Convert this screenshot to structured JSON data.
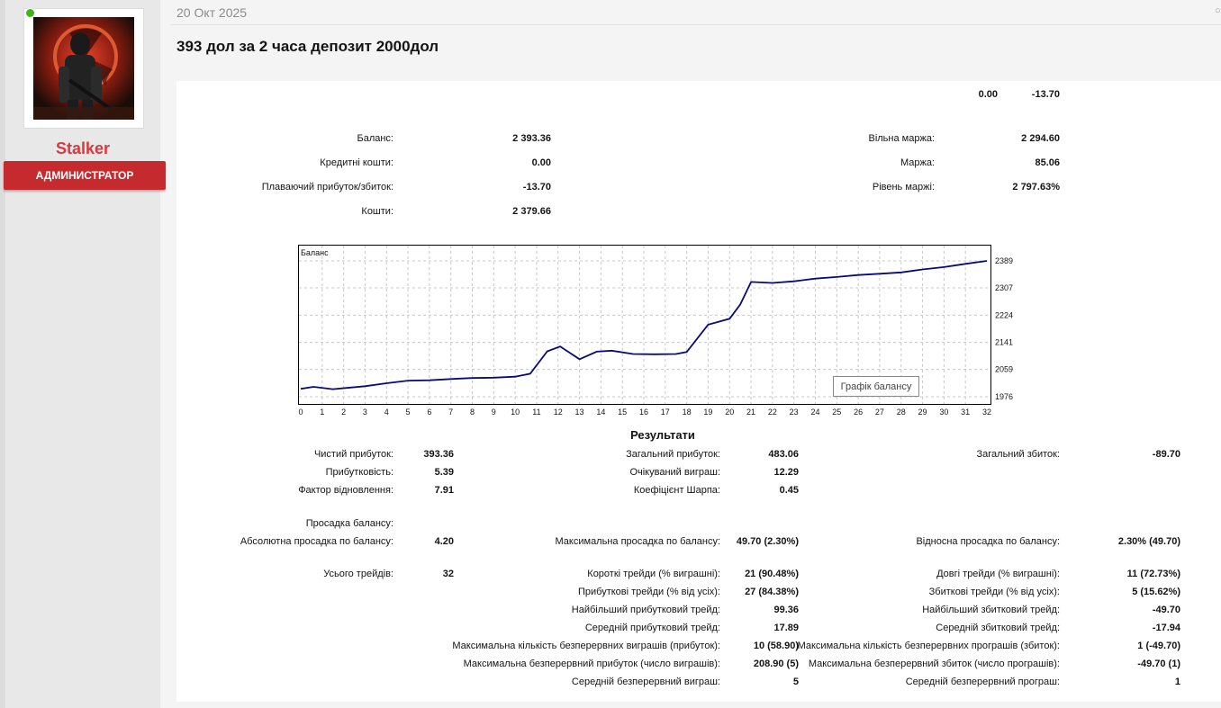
{
  "post": {
    "date": "20 Окт 2025",
    "title": "393 дол за 2 часа депозит 2000дол"
  },
  "author": {
    "name": "Stalker",
    "role": "АДМИНИСТРАТОР"
  },
  "ui": {
    "more_icon": "ellipsis-icon"
  },
  "colors": {
    "accent": "#c52b2e",
    "name": "#d8393c",
    "online": "#3fb618",
    "line": "#0a0a7a"
  },
  "summary": {
    "top_left_value": "0.00",
    "top_right_value": "-13.70",
    "balance_label": "Баланс:",
    "balance_value": "2 393.36",
    "credit_label": "Кредитні кошти:",
    "credit_value": "0.00",
    "floating_label": "Плаваючий прибуток/збиток:",
    "floating_value": "-13.70",
    "equity_label": "Кошти:",
    "equity_value": "2 379.66",
    "free_margin_label": "Вільна маржа:",
    "free_margin_value": "2 294.60",
    "margin_label": "Маржа:",
    "margin_value": "85.06",
    "margin_level_label": "Рівень маржі:",
    "margin_level_value": "2 797.63%"
  },
  "chart_data": {
    "type": "line",
    "title": "Баланс",
    "legend": "Графік балансу",
    "x_ticks": [
      "0",
      "1",
      "2",
      "3",
      "4",
      "5",
      "6",
      "7",
      "8",
      "9",
      "10",
      "11",
      "12",
      "13",
      "14",
      "15",
      "16",
      "17",
      "18",
      "19",
      "20",
      "21",
      "22",
      "23",
      "24",
      "25",
      "26",
      "27",
      "28",
      "29",
      "30",
      "31",
      "32"
    ],
    "y_ticks": [
      "2389",
      "2307",
      "2224",
      "2141",
      "2059",
      "1976"
    ],
    "ylim": [
      1976,
      2389
    ],
    "xlim": [
      0,
      32
    ],
    "grid": true,
    "x": [
      0,
      0.6,
      1.5,
      3,
      4,
      5,
      6,
      7,
      8,
      9,
      10,
      10.7,
      11.5,
      12.1,
      13,
      13.8,
      14.5,
      15.5,
      16.5,
      17.5,
      18,
      19,
      20,
      20.5,
      21,
      22,
      23,
      24,
      25,
      26,
      27,
      28,
      29,
      30,
      31,
      32
    ],
    "y": [
      2000,
      2006,
      1999,
      2008,
      2017,
      2025,
      2026,
      2030,
      2033,
      2034,
      2037,
      2046,
      2114,
      2129,
      2090,
      2113,
      2116,
      2106,
      2105,
      2106,
      2112,
      2195,
      2213,
      2257,
      2325,
      2322,
      2327,
      2335,
      2340,
      2346,
      2350,
      2354,
      2363,
      2370,
      2380,
      2389
    ]
  },
  "results": {
    "title": "Результати",
    "rows": [
      {
        "c1l": "Чистий прибуток:",
        "c1v": "393.36",
        "c2l": "Загальний прибуток:",
        "c2v": "483.06",
        "c3l": "Загальний збиток:",
        "c3v": "-89.70"
      },
      {
        "c1l": "Прибутковість:",
        "c1v": "5.39",
        "c2l": "Очікуваний виграш:",
        "c2v": "12.29",
        "c3l": "",
        "c3v": ""
      },
      {
        "c1l": "Фактор відновлення:",
        "c1v": "7.91",
        "c2l": "Коефіцієнт Шарпа:",
        "c2v": "0.45",
        "c3l": "",
        "c3v": ""
      },
      {
        "c1l": "Просадка балансу:",
        "c1v": "",
        "c2l": "",
        "c2v": "",
        "c3l": "",
        "c3v": ""
      },
      {
        "c1l": "Абсолютна просадка по балансу:",
        "c1v": "4.20",
        "c2l": "Максимальна просадка по балансу:",
        "c2v": "49.70 (2.30%)",
        "c3l": "Відносна просадка по балансу:",
        "c3v": "2.30% (49.70)"
      },
      {
        "c1l": "Усього трейдів:",
        "c1v": "32",
        "c2l": "Короткі трейди (% виграшні):",
        "c2v": "21 (90.48%)",
        "c3l": "Довгі трейди (% виграшні):",
        "c3v": "11 (72.73%)"
      },
      {
        "c1l": "",
        "c1v": "",
        "c2l": "Прибуткові трейди (% від усіх):",
        "c2v": "27 (84.38%)",
        "c3l": "Збиткові трейди (% від усіх):",
        "c3v": "5 (15.62%)"
      },
      {
        "c1l": "",
        "c1v": "",
        "c2l": "Найбільший прибутковий трейд:",
        "c2v": "99.36",
        "c3l": "Найбільший збитковий трейд:",
        "c3v": "-49.70"
      },
      {
        "c1l": "",
        "c1v": "",
        "c2l": "Середній прибутковий трейд:",
        "c2v": "17.89",
        "c3l": "Середній збитковий трейд:",
        "c3v": "-17.94"
      },
      {
        "c1l": "",
        "c1v": "",
        "c2l": "Максимальна кількість безперервних виграшів (прибуток):",
        "c2v": "10 (58.90)",
        "c3l": "Максимальна кількість безперервних програшів (збиток):",
        "c3v": "1 (-49.70)"
      },
      {
        "c1l": "",
        "c1v": "",
        "c2l": "Максимальна безперервний прибуток (число виграшів):",
        "c2v": "208.90 (5)",
        "c3l": "Максимальна безперервний збиток (число програшів):",
        "c3v": "-49.70 (1)"
      },
      {
        "c1l": "",
        "c1v": "",
        "c2l": "Середній безперервний виграш:",
        "c2v": "5",
        "c3l": "Середній безперервний програш:",
        "c3v": "1"
      }
    ]
  }
}
